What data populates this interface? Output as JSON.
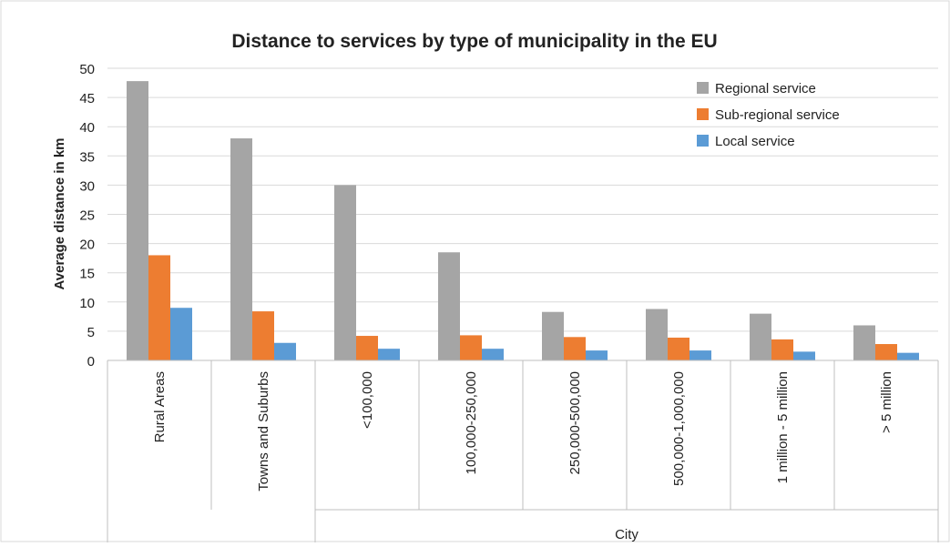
{
  "chart_data": {
    "type": "bar",
    "title": "Distance to services by type of municipality in the EU",
    "ylabel": "Average distance in km",
    "ylim": [
      0,
      50
    ],
    "yticks": [
      0,
      5,
      10,
      15,
      20,
      25,
      30,
      35,
      40,
      45,
      50
    ],
    "categories": [
      "Rural Areas",
      "Towns and Suburbs",
      "<100,000",
      "100,000-250,000",
      "250,000-500,000",
      "500,000-1,000,000",
      "1 million - 5 million",
      "> 5 million"
    ],
    "group_label": "City",
    "grid": true,
    "legend_position": "top-right",
    "series": [
      {
        "name": "Regional service",
        "color": "#a5a5a5",
        "values": [
          47.8,
          38,
          30,
          18.5,
          8.3,
          8.8,
          8,
          6
        ]
      },
      {
        "name": "Sub-regional service",
        "color": "#ed7d31",
        "values": [
          18,
          8.4,
          4.2,
          4.3,
          4,
          3.9,
          3.6,
          2.8
        ]
      },
      {
        "name": "Local service",
        "color": "#5b9bd5",
        "values": [
          9,
          3,
          2,
          2,
          1.7,
          1.7,
          1.5,
          1.3
        ]
      }
    ]
  }
}
